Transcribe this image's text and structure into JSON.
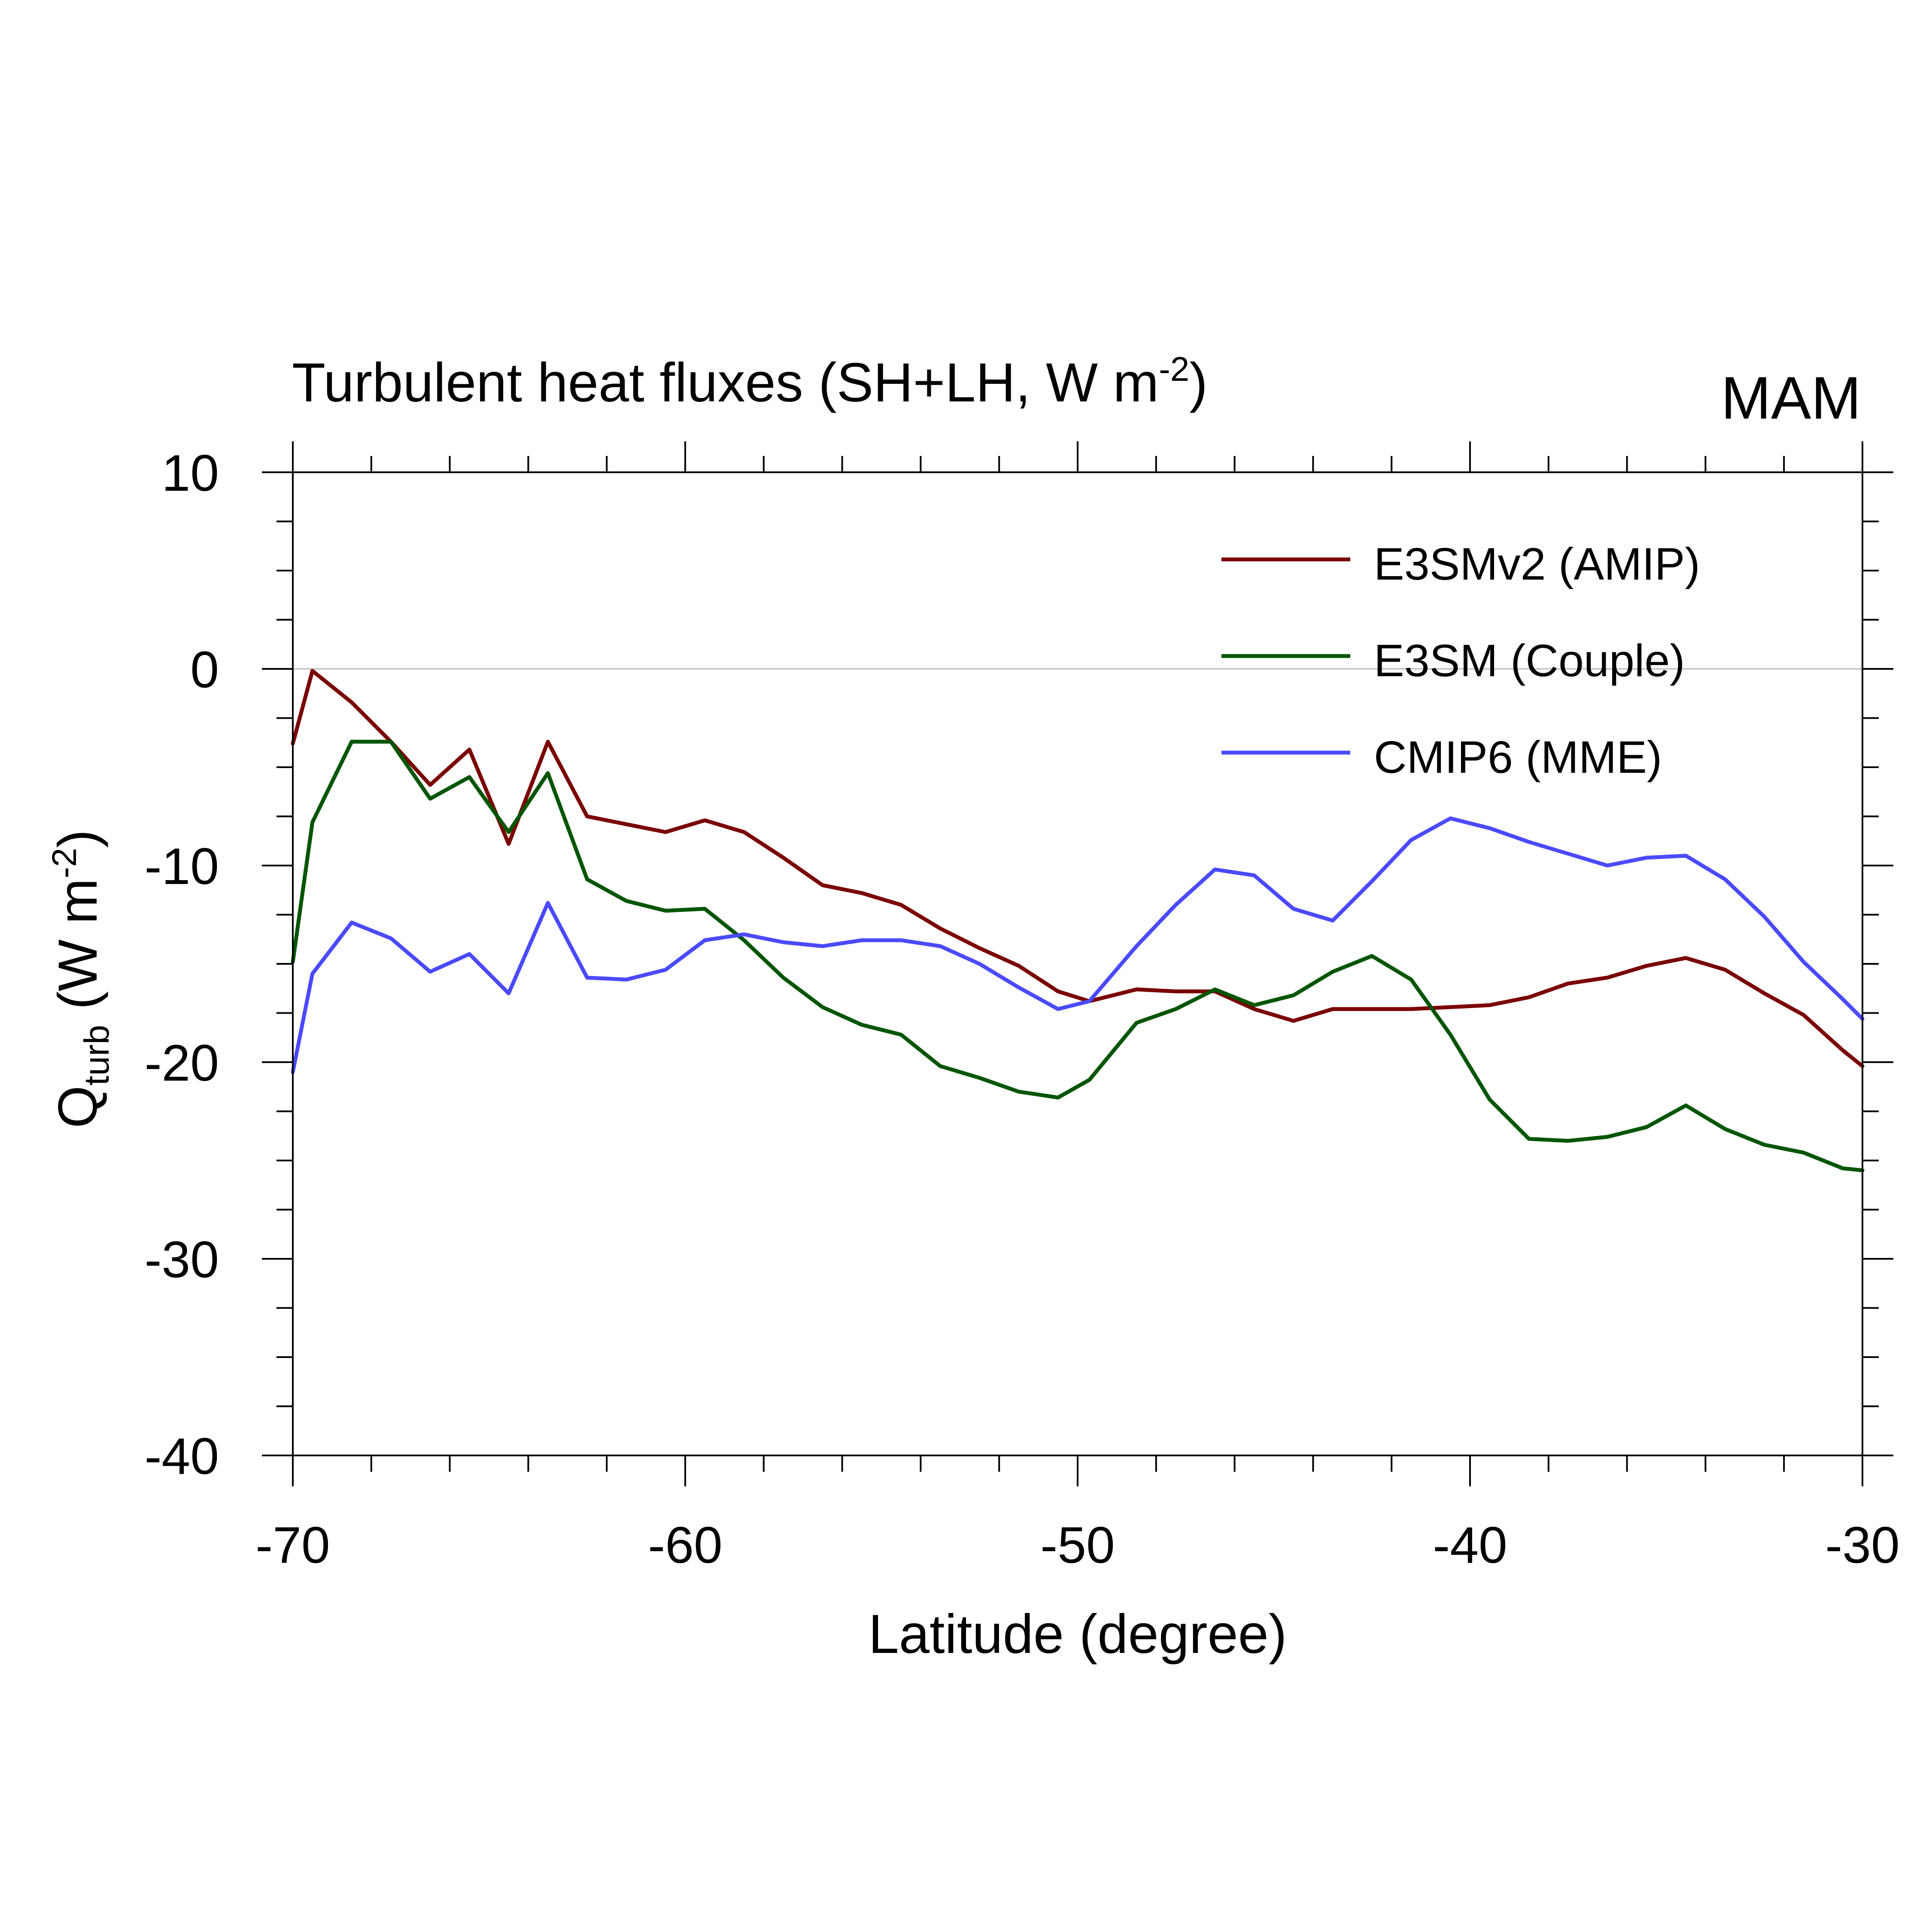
{
  "chart_data": {
    "type": "line",
    "title": "Turbulent heat fluxes (SH+LH, W m",
    "title_superscript": "-2",
    "title_suffix": ")",
    "season_label": "MAM",
    "xlabel": "Latitude (degree)",
    "ylabel": {
      "symbol": "Q",
      "subscript": "turb",
      "units_prefix": " (W m",
      "units_superscript": "-2",
      "units_suffix": ")"
    },
    "xlim": [
      -70,
      -30
    ],
    "ylim": [
      -40,
      10
    ],
    "x_tick_labels": [
      "-70",
      "-60",
      "-50",
      "-40",
      "-30"
    ],
    "y_tick_labels": [
      "10",
      "0",
      "-10",
      "-20",
      "-30",
      "-40"
    ],
    "zero_line": true,
    "legend_position": "top-right",
    "series": [
      {
        "name": "E3SMv2 (AMIP)",
        "color": "#7a0000",
        "x": [
          -70,
          -69.5,
          -68.5,
          -67.5,
          -66.5,
          -65.5,
          -64.5,
          -63.5,
          -62.5,
          -61.5,
          -60.5,
          -59.5,
          -58.5,
          -57.5,
          -56.5,
          -55.5,
          -54.5,
          -53.5,
          -52.5,
          -51.5,
          -50.5,
          -49.7,
          -48.5,
          -47.5,
          -46.5,
          -45.5,
          -44.5,
          -43.5,
          -42.5,
          -41.5,
          -40.5,
          -39.5,
          -38.5,
          -37.5,
          -36.5,
          -35.5,
          -34.5,
          -33.5,
          -32.5,
          -31.5,
          -30.5,
          -30
        ],
        "y": [
          -3.8,
          -0.1,
          -1.7,
          -3.7,
          -5.9,
          -4.1,
          -8.9,
          -3.7,
          -7.5,
          -7.9,
          -8.3,
          -7.7,
          -8.3,
          -9.6,
          -11.0,
          -11.4,
          -12.0,
          -13.2,
          -14.2,
          -15.1,
          -16.4,
          -16.9,
          -16.3,
          -16.4,
          -16.4,
          -17.3,
          -17.9,
          -17.3,
          -17.3,
          -17.3,
          -17.2,
          -17.1,
          -16.7,
          -16.0,
          -15.7,
          -15.1,
          -14.7,
          -15.3,
          -16.5,
          -17.6,
          -19.4,
          -20.2
        ]
      },
      {
        "name": "E3SM (Couple)",
        "color": "#005500",
        "x": [
          -70,
          -69.5,
          -68.5,
          -67.5,
          -66.5,
          -65.5,
          -64.5,
          -63.5,
          -62.5,
          -61.5,
          -60.5,
          -59.5,
          -58.5,
          -57.5,
          -56.5,
          -55.5,
          -54.5,
          -53.5,
          -52.5,
          -51.5,
          -50.5,
          -49.7,
          -48.5,
          -47.5,
          -46.5,
          -45.5,
          -44.5,
          -43.5,
          -42.5,
          -41.5,
          -40.5,
          -39.5,
          -38.5,
          -37.5,
          -36.5,
          -35.5,
          -34.5,
          -33.5,
          -32.5,
          -31.5,
          -30.5,
          -30
        ],
        "y": [
          -14.9,
          -7.8,
          -3.7,
          -3.7,
          -6.6,
          -5.5,
          -8.3,
          -5.3,
          -10.7,
          -11.8,
          -12.3,
          -12.2,
          -13.8,
          -15.7,
          -17.2,
          -18.1,
          -18.6,
          -20.2,
          -20.8,
          -21.5,
          -21.8,
          -20.9,
          -18.0,
          -17.3,
          -16.3,
          -17.1,
          -16.6,
          -15.4,
          -14.6,
          -15.8,
          -18.6,
          -21.9,
          -23.9,
          -24.0,
          -23.8,
          -23.3,
          -22.2,
          -23.4,
          -24.2,
          -24.6,
          -25.4,
          -25.5
        ]
      },
      {
        "name": "CMIP6 (MME)",
        "color": "#4a4aff",
        "x": [
          -70,
          -69.5,
          -68.5,
          -67.5,
          -66.5,
          -65.5,
          -64.5,
          -63.5,
          -62.5,
          -61.5,
          -60.5,
          -59.5,
          -58.5,
          -57.5,
          -56.5,
          -55.5,
          -54.5,
          -53.5,
          -52.5,
          -51.5,
          -50.5,
          -49.7,
          -48.5,
          -47.5,
          -46.5,
          -45.5,
          -44.5,
          -43.5,
          -42.5,
          -41.5,
          -40.5,
          -39.5,
          -38.5,
          -37.5,
          -36.5,
          -35.5,
          -34.5,
          -33.5,
          -32.5,
          -31.5,
          -30.5,
          -30
        ],
        "y": [
          -20.5,
          -15.5,
          -12.9,
          -13.7,
          -15.4,
          -14.5,
          -16.5,
          -11.9,
          -15.7,
          -15.8,
          -15.3,
          -13.8,
          -13.5,
          -13.9,
          -14.1,
          -13.8,
          -13.8,
          -14.1,
          -15.0,
          -16.2,
          -17.3,
          -16.9,
          -14.1,
          -12.0,
          -10.2,
          -10.5,
          -12.2,
          -12.8,
          -10.8,
          -8.7,
          -7.6,
          -8.1,
          -8.8,
          -9.4,
          -10.0,
          -9.6,
          -9.5,
          -10.7,
          -12.6,
          -14.9,
          -16.8,
          -17.8
        ]
      }
    ]
  }
}
